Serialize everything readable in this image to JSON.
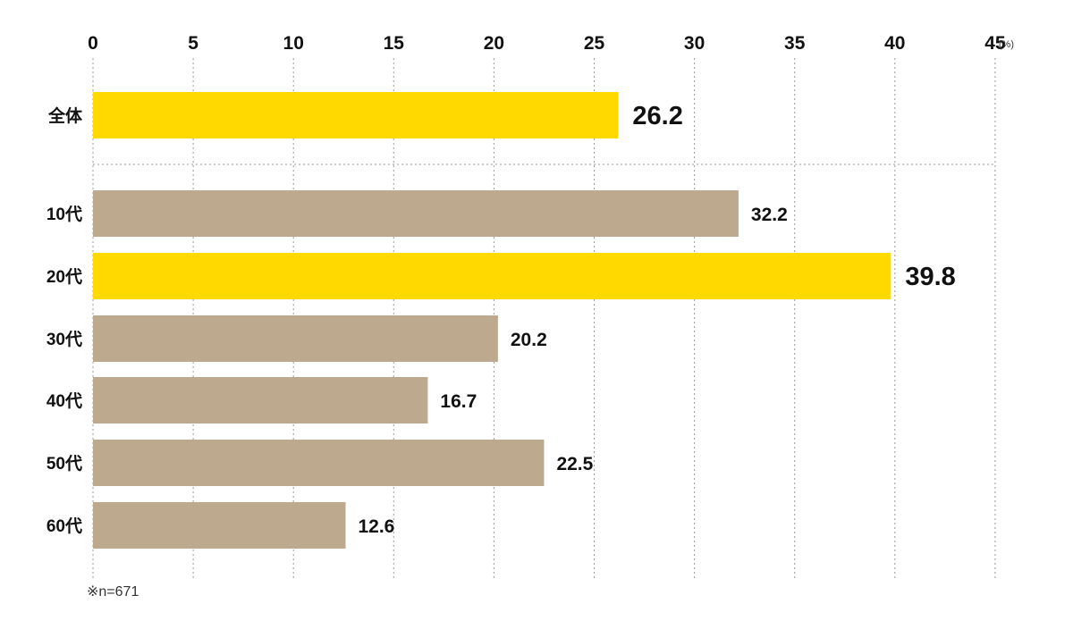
{
  "chart_data": {
    "type": "bar",
    "orientation": "horizontal",
    "unit": "(%)",
    "xlim": [
      0,
      45
    ],
    "xticks": [
      0,
      5,
      10,
      15,
      20,
      25,
      30,
      35,
      40,
      45
    ],
    "grid": "dotted-vertical",
    "categories": [
      "全体",
      "10代",
      "20代",
      "30代",
      "40代",
      "50代",
      "60代"
    ],
    "values": [
      26.2,
      32.2,
      39.8,
      20.2,
      16.7,
      22.5,
      12.6
    ],
    "value_labels": [
      "26.2",
      "32.2",
      "39.8",
      "20.2",
      "16.7",
      "22.5",
      "12.6"
    ],
    "highlight": [
      true,
      false,
      true,
      false,
      false,
      false,
      false
    ],
    "separator_after_index": 0,
    "note": "※n=671"
  },
  "colors": {
    "highlight_bar": "#FFD900",
    "normal_bar": "#BCA98E",
    "highlight_text": "#1FA67A",
    "normal_text": "#111111",
    "grid": "#999999"
  }
}
